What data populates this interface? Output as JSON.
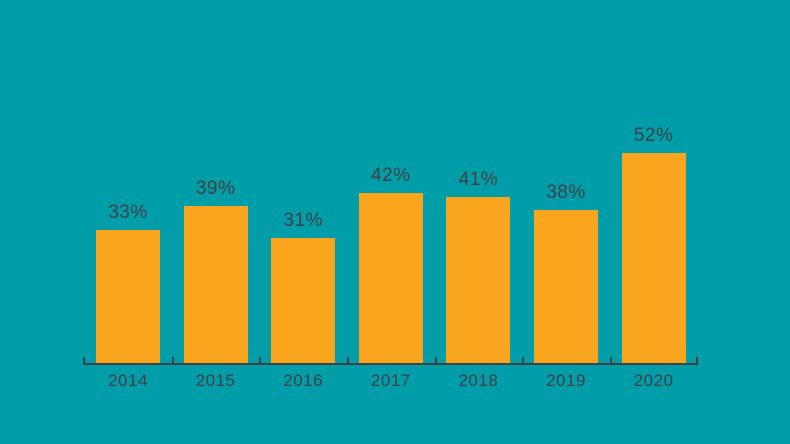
{
  "chart_data": {
    "type": "bar",
    "title": "",
    "xlabel": "",
    "ylabel": "",
    "categories": [
      "2014",
      "2015",
      "2016",
      "2017",
      "2018",
      "2019",
      "2020"
    ],
    "values": [
      33,
      39,
      31,
      42,
      41,
      38,
      52
    ],
    "value_labels": [
      "33%",
      "39%",
      "31%",
      "42%",
      "41%",
      "38%",
      "52%"
    ],
    "ylim": [
      0,
      55
    ],
    "grid": false,
    "legend_position": "none",
    "colors": {
      "background": "#019DA8",
      "bar": "#F9A51E",
      "label_text": "#3F4142",
      "axis": "#3E4244"
    }
  }
}
